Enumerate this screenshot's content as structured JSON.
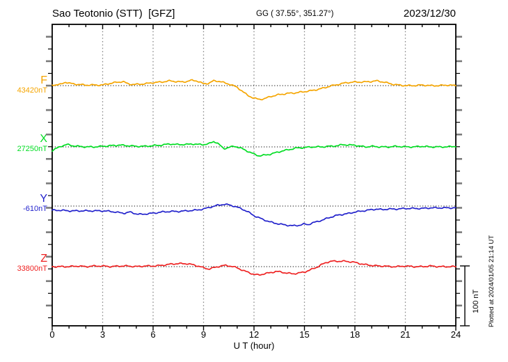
{
  "header": {
    "station_title": "Sao Teotonio (STT)  [GFZ]",
    "coords": "GG ( 37.55°, 351.27°)",
    "date": "2023/12/30"
  },
  "x_axis": {
    "label": "U T (hour)",
    "ticks": [
      "0",
      "3",
      "6",
      "9",
      "12",
      "15",
      "18",
      "21",
      "24"
    ]
  },
  "scale_bar": {
    "label": "100 nT"
  },
  "plotted_note": "Plotted at 2024/01/05 21:14 UT",
  "channels": [
    {
      "label": "F",
      "value_label": "43420nT",
      "color": "#f5a500"
    },
    {
      "label": "X",
      "value_label": "27250nT",
      "color": "#00dd22"
    },
    {
      "label": "Y",
      "value_label": "-610nT",
      "color": "#2222cc"
    },
    {
      "label": "Z",
      "value_label": "33800nT",
      "color": "#ee2222"
    }
  ],
  "chart_data": {
    "type": "line",
    "title": "Magnetogram Sao Teotonio (STT) [GFZ] 2023/12/30",
    "xlabel": "U T (hour)",
    "x_range": [
      0,
      24
    ],
    "x_major_ticks": [
      0,
      3,
      6,
      9,
      12,
      15,
      18,
      21,
      24
    ],
    "x_minor_tick_interval_hours": 1,
    "grid": "vertical-dotted-at-3h",
    "y_tick_interval_nT": 20,
    "scale_bar_nT": 100,
    "series": [
      {
        "name": "F",
        "baseline_nT": 43420,
        "color": "#f5a500",
        "offsets_nT": [
          [
            0,
            1
          ],
          [
            0.5,
            2
          ],
          [
            0.8,
            6
          ],
          [
            1,
            4
          ],
          [
            1.5,
            2
          ],
          [
            2,
            1
          ],
          [
            2.5,
            1
          ],
          [
            3,
            1
          ],
          [
            3.3,
            3
          ],
          [
            3.7,
            5
          ],
          [
            4,
            6
          ],
          [
            4.2,
            7
          ],
          [
            4.5,
            3
          ],
          [
            4.8,
            2
          ],
          [
            5,
            2
          ],
          [
            5.5,
            3
          ],
          [
            6,
            5
          ],
          [
            6.5,
            6
          ],
          [
            7,
            8
          ],
          [
            7.3,
            7
          ],
          [
            7.7,
            6
          ],
          [
            8,
            7
          ],
          [
            8.3,
            9
          ],
          [
            8.6,
            8
          ],
          [
            9,
            3
          ],
          [
            9.3,
            4
          ],
          [
            9.6,
            8
          ],
          [
            10,
            7
          ],
          [
            10.3,
            4
          ],
          [
            10.6,
            2
          ],
          [
            11,
            -3
          ],
          [
            11.3,
            -9
          ],
          [
            11.6,
            -16
          ],
          [
            12,
            -21
          ],
          [
            12.3,
            -23
          ],
          [
            12.6,
            -22
          ],
          [
            13,
            -18
          ],
          [
            13.5,
            -15
          ],
          [
            14,
            -13
          ],
          [
            14.5,
            -12
          ],
          [
            15,
            -10
          ],
          [
            15.5,
            -8
          ],
          [
            16,
            -5
          ],
          [
            16.5,
            -1
          ],
          [
            17,
            2
          ],
          [
            17.5,
            5
          ],
          [
            18,
            6
          ],
          [
            18.5,
            6
          ],
          [
            19,
            7
          ],
          [
            19.3,
            8
          ],
          [
            19.7,
            6
          ],
          [
            20,
            4
          ],
          [
            20.3,
            2
          ],
          [
            20.6,
            1
          ],
          [
            21,
            0
          ],
          [
            21.5,
            0
          ],
          [
            22,
            1
          ],
          [
            22.5,
            0
          ],
          [
            23,
            0
          ],
          [
            23.5,
            1
          ],
          [
            24,
            0
          ]
        ]
      },
      {
        "name": "X",
        "baseline_nT": 27250,
        "color": "#00dd22",
        "offsets_nT": [
          [
            0,
            -6
          ],
          [
            0.3,
            -2
          ],
          [
            0.6,
            2
          ],
          [
            0.9,
            4
          ],
          [
            1.2,
            2
          ],
          [
            1.5,
            1
          ],
          [
            2,
            0
          ],
          [
            2.5,
            0
          ],
          [
            3,
            1
          ],
          [
            3.5,
            2
          ],
          [
            4,
            3
          ],
          [
            4.5,
            2
          ],
          [
            5,
            1
          ],
          [
            5.5,
            1
          ],
          [
            6,
            2
          ],
          [
            6.5,
            3
          ],
          [
            7,
            5
          ],
          [
            7.3,
            4
          ],
          [
            7.7,
            4
          ],
          [
            8,
            4
          ],
          [
            8.3,
            5
          ],
          [
            8.7,
            4
          ],
          [
            9,
            4
          ],
          [
            9.3,
            5
          ],
          [
            9.6,
            9
          ],
          [
            9.8,
            7
          ],
          [
            10,
            2
          ],
          [
            10.2,
            -3
          ],
          [
            10.5,
            -1
          ],
          [
            10.8,
            1
          ],
          [
            11,
            0
          ],
          [
            11.3,
            -3
          ],
          [
            11.6,
            -7
          ],
          [
            12,
            -12
          ],
          [
            12.3,
            -15
          ],
          [
            12.6,
            -14
          ],
          [
            13,
            -12
          ],
          [
            13.5,
            -8
          ],
          [
            14,
            -5
          ],
          [
            14.5,
            -2
          ],
          [
            15,
            -1
          ],
          [
            15.5,
            0
          ],
          [
            16,
            0
          ],
          [
            16.5,
            1
          ],
          [
            17,
            2
          ],
          [
            17.3,
            4
          ],
          [
            17.6,
            3
          ],
          [
            18,
            3
          ],
          [
            18.3,
            1
          ],
          [
            18.7,
            0
          ],
          [
            19,
            1
          ],
          [
            19.5,
            0
          ],
          [
            20,
            0
          ],
          [
            20.5,
            1
          ],
          [
            21,
            0
          ],
          [
            21.5,
            0
          ],
          [
            22,
            1
          ],
          [
            22.5,
            0
          ],
          [
            23,
            0
          ],
          [
            23.5,
            0
          ],
          [
            24,
            1
          ]
        ]
      },
      {
        "name": "Y",
        "baseline_nT": -610,
        "color": "#2222cc",
        "offsets_nT": [
          [
            0,
            -7
          ],
          [
            0.5,
            -7
          ],
          [
            1,
            -8
          ],
          [
            1.5,
            -8
          ],
          [
            2,
            -8
          ],
          [
            2.5,
            -8
          ],
          [
            3,
            -8
          ],
          [
            3.5,
            -9
          ],
          [
            4,
            -11
          ],
          [
            4.3,
            -12
          ],
          [
            4.6,
            -10
          ],
          [
            5,
            -13
          ],
          [
            5.3,
            -14
          ],
          [
            5.6,
            -13
          ],
          [
            6,
            -12
          ],
          [
            6.5,
            -10
          ],
          [
            7,
            -9
          ],
          [
            7.5,
            -9
          ],
          [
            8,
            -8
          ],
          [
            8.5,
            -7
          ],
          [
            9,
            -5
          ],
          [
            9.5,
            -1
          ],
          [
            9.8,
            1
          ],
          [
            10,
            2
          ],
          [
            10.2,
            3
          ],
          [
            10.5,
            2
          ],
          [
            10.8,
            0
          ],
          [
            11,
            -2
          ],
          [
            11.3,
            -5
          ],
          [
            11.6,
            -9
          ],
          [
            12,
            -16
          ],
          [
            12.5,
            -22
          ],
          [
            13,
            -27
          ],
          [
            13.5,
            -30
          ],
          [
            14,
            -32
          ],
          [
            14.3,
            -33
          ],
          [
            14.7,
            -32
          ],
          [
            15,
            -30
          ],
          [
            15.2,
            -31
          ],
          [
            15.5,
            -28
          ],
          [
            16,
            -24
          ],
          [
            16.5,
            -19
          ],
          [
            17,
            -15
          ],
          [
            17.5,
            -13
          ],
          [
            18,
            -10
          ],
          [
            18.5,
            -8
          ],
          [
            19,
            -6
          ],
          [
            19.3,
            -5
          ],
          [
            19.6,
            -6
          ],
          [
            20,
            -5
          ],
          [
            20.5,
            -5
          ],
          [
            21,
            -4
          ],
          [
            21.5,
            -4
          ],
          [
            22,
            -4
          ],
          [
            22.5,
            -3
          ],
          [
            23,
            -3
          ],
          [
            23.5,
            -3
          ],
          [
            24,
            -3
          ]
        ]
      },
      {
        "name": "Z",
        "baseline_nT": 33800,
        "color": "#ee2222",
        "offsets_nT": [
          [
            0,
            0
          ],
          [
            0.5,
            0
          ],
          [
            1,
            0
          ],
          [
            1.5,
            1
          ],
          [
            2,
            0
          ],
          [
            2.5,
            1
          ],
          [
            3,
            1
          ],
          [
            3.5,
            0
          ],
          [
            4,
            1
          ],
          [
            4.5,
            1
          ],
          [
            5,
            0
          ],
          [
            5.5,
            1
          ],
          [
            6,
            1
          ],
          [
            6.5,
            2
          ],
          [
            7,
            4
          ],
          [
            7.4,
            5
          ],
          [
            7.8,
            5
          ],
          [
            8,
            5
          ],
          [
            8.4,
            3
          ],
          [
            8.8,
            0
          ],
          [
            9,
            -2
          ],
          [
            9.3,
            -4
          ],
          [
            9.6,
            -2
          ],
          [
            10,
            1
          ],
          [
            10.3,
            2
          ],
          [
            10.6,
            1
          ],
          [
            11,
            -2
          ],
          [
            11.4,
            -7
          ],
          [
            11.7,
            -10
          ],
          [
            12,
            -13
          ],
          [
            12.3,
            -14
          ],
          [
            12.6,
            -12
          ],
          [
            13,
            -10
          ],
          [
            13.3,
            -8
          ],
          [
            13.6,
            -9
          ],
          [
            14,
            -11
          ],
          [
            14.3,
            -12
          ],
          [
            14.6,
            -11
          ],
          [
            15,
            -9
          ],
          [
            15.4,
            -5
          ],
          [
            15.8,
            0
          ],
          [
            16,
            3
          ],
          [
            16.3,
            7
          ],
          [
            16.6,
            9
          ],
          [
            17,
            9
          ],
          [
            17.4,
            9
          ],
          [
            17.8,
            8
          ],
          [
            18,
            7
          ],
          [
            18.3,
            5
          ],
          [
            18.7,
            3
          ],
          [
            19,
            2
          ],
          [
            19.4,
            1
          ],
          [
            19.8,
            1
          ],
          [
            20,
            0
          ],
          [
            20.5,
            0
          ],
          [
            21,
            1
          ],
          [
            21.5,
            0
          ],
          [
            22,
            0
          ],
          [
            22.5,
            1
          ],
          [
            23,
            0
          ],
          [
            23.5,
            0
          ],
          [
            24,
            0
          ]
        ]
      }
    ]
  }
}
